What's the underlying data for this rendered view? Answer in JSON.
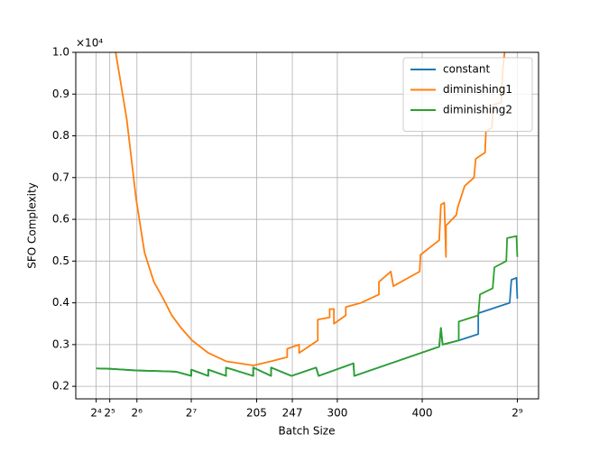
{
  "chart_data": {
    "type": "line",
    "xlabel": "Batch Size",
    "ylabel": "SFO Complexity",
    "y_multiplier": "×10⁴",
    "xlim": [
      -8,
      537
    ],
    "ylim": [
      0.17,
      1.0
    ],
    "xticks": [
      {
        "value": 16,
        "label": "2⁴"
      },
      {
        "value": 32,
        "label": "2⁵"
      },
      {
        "value": 64,
        "label": "2⁶"
      },
      {
        "value": 128,
        "label": "2⁷"
      },
      205,
      247,
      300,
      400,
      {
        "value": 512,
        "label": "2⁹"
      }
    ],
    "yticks": [
      0.2,
      0.3,
      0.4,
      0.5,
      0.6,
      0.7,
      0.8,
      0.9,
      {
        "value": 1,
        "label": "1.0"
      }
    ],
    "grid": true,
    "legend": "upper right",
    "series": [
      {
        "name": "constant",
        "color": "#1f77b4",
        "x": [
          16,
          32,
          64,
          100,
          110,
          128,
          128,
          148,
          148,
          169,
          169,
          201,
          201,
          222,
          222,
          246,
          275,
          278,
          319,
          320,
          420,
          422,
          424,
          443,
          466,
          466,
          503,
          505,
          511,
          512
        ],
        "values": [
          0.243,
          0.242,
          0.238,
          0.236,
          0.235,
          0.225,
          0.24,
          0.225,
          0.24,
          0.225,
          0.245,
          0.225,
          0.245,
          0.225,
          0.245,
          0.225,
          0.245,
          0.225,
          0.255,
          0.225,
          0.295,
          0.34,
          0.3,
          0.31,
          0.325,
          0.375,
          0.4,
          0.455,
          0.46,
          0.41
        ]
      },
      {
        "name": "diminishing1",
        "color": "#ff7f0e",
        "x": [
          39,
          52,
          63,
          73,
          84,
          95,
          105,
          116,
          129,
          148,
          169,
          201,
          222,
          241,
          241,
          255,
          255,
          277,
          277,
          291,
          291,
          296,
          296,
          310,
          310,
          328,
          349,
          349,
          363,
          366,
          397,
          398,
          420,
          422,
          426,
          428,
          428,
          440,
          442,
          450,
          461,
          463,
          474,
          475,
          482,
          484,
          493,
          495,
          497
        ],
        "values": [
          1.0,
          0.84,
          0.65,
          0.52,
          0.45,
          0.41,
          0.37,
          0.34,
          0.31,
          0.28,
          0.26,
          0.25,
          0.26,
          0.27,
          0.29,
          0.3,
          0.28,
          0.31,
          0.36,
          0.365,
          0.385,
          0.385,
          0.35,
          0.37,
          0.39,
          0.4,
          0.42,
          0.45,
          0.475,
          0.44,
          0.475,
          0.515,
          0.55,
          0.635,
          0.64,
          0.51,
          0.585,
          0.61,
          0.63,
          0.68,
          0.7,
          0.745,
          0.76,
          0.81,
          0.82,
          0.875,
          0.88,
          0.96,
          1.0
        ]
      },
      {
        "name": "diminishing2",
        "color": "#2ca02c",
        "x": [
          16,
          32,
          64,
          100,
          110,
          128,
          128,
          148,
          148,
          169,
          169,
          201,
          201,
          222,
          222,
          246,
          275,
          278,
          319,
          320,
          420,
          422,
          424,
          443,
          443,
          466,
          468,
          483,
          485,
          499,
          500,
          511,
          512
        ],
        "values": [
          0.243,
          0.242,
          0.238,
          0.236,
          0.235,
          0.225,
          0.24,
          0.225,
          0.24,
          0.225,
          0.245,
          0.225,
          0.245,
          0.225,
          0.245,
          0.225,
          0.245,
          0.225,
          0.255,
          0.225,
          0.295,
          0.34,
          0.3,
          0.31,
          0.355,
          0.37,
          0.42,
          0.435,
          0.485,
          0.5,
          0.555,
          0.56,
          0.51
        ]
      }
    ]
  }
}
